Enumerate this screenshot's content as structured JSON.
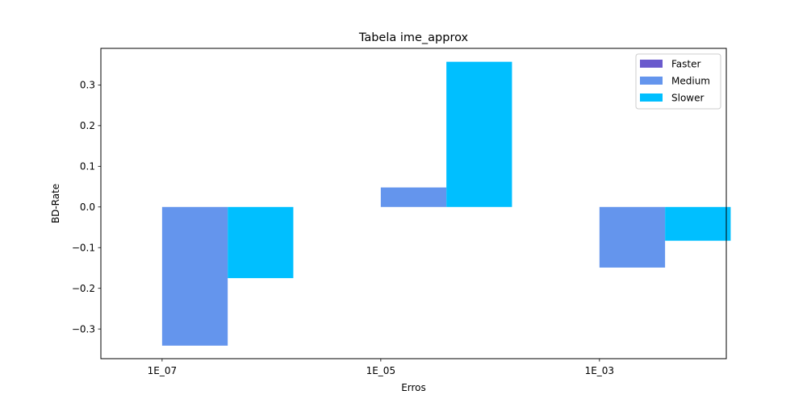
{
  "chart_data": {
    "type": "bar",
    "title": "Tabela ime_approx",
    "xlabel": "Erros",
    "ylabel": "BD-Rate",
    "categories": [
      "1E_07",
      "1E_05",
      "1E_03"
    ],
    "series": [
      {
        "name": "Faster",
        "color": "#6a5acd",
        "values": [
          0,
          0,
          0
        ]
      },
      {
        "name": "Medium",
        "color": "#6495ed",
        "values": [
          -0.341,
          0.048,
          -0.149
        ]
      },
      {
        "name": "Slower",
        "color": "#00bfff",
        "values": [
          -0.175,
          0.357,
          -0.083
        ]
      }
    ],
    "ylim": [
      -0.373,
      0.39
    ],
    "yticks": [
      -0.3,
      -0.2,
      -0.1,
      0.0,
      0.1,
      0.2,
      0.3
    ],
    "ytick_labels": [
      "−0.3",
      "−0.2",
      "−0.1",
      "0.0",
      "0.1",
      "0.2",
      "0.3"
    ],
    "grid": false,
    "legend_position": "top-right"
  }
}
